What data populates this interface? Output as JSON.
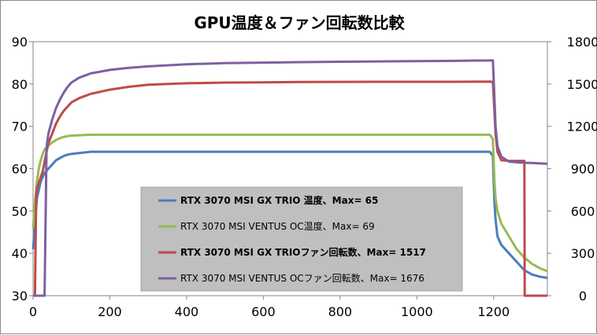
{
  "chart_data": {
    "type": "line",
    "title": "GPU温度＆ファン回転数比較",
    "xlabel": "",
    "ylabel": "",
    "y2label": "",
    "xlim": [
      0,
      1340
    ],
    "ylim": [
      30,
      90
    ],
    "y2lim": [
      0,
      1800
    ],
    "x_ticks": [
      0,
      200,
      400,
      600,
      800,
      1000,
      1200
    ],
    "y_ticks": [
      30,
      40,
      50,
      60,
      70,
      80,
      90
    ],
    "y2_ticks": [
      0,
      300,
      600,
      900,
      1200,
      1500,
      1800
    ],
    "grid": false,
    "legend_position": "center",
    "series": [
      {
        "name": "RTX 3070 MSI GX TRIO 温度、Max= 65",
        "axis": "left",
        "color": "#4a7ebb",
        "bold": true,
        "x": [
          0,
          5,
          10,
          15,
          20,
          25,
          30,
          40,
          50,
          60,
          70,
          80,
          90,
          100,
          120,
          150,
          200,
          300,
          400,
          500,
          600,
          700,
          800,
          900,
          1000,
          1100,
          1190,
          1198,
          1200,
          1202,
          1205,
          1210,
          1220,
          1240,
          1260,
          1280,
          1300,
          1320,
          1340
        ],
        "y": [
          41,
          47,
          53,
          55,
          57,
          58,
          59,
          60,
          61,
          62,
          62.5,
          63,
          63.3,
          63.5,
          63.7,
          64,
          64,
          64,
          64,
          64,
          64,
          64,
          64,
          64,
          64,
          64,
          64,
          63,
          57,
          52,
          48,
          44,
          42,
          40,
          38,
          36,
          35,
          34.5,
          34.2
        ]
      },
      {
        "name": "RTX 3070 MSI VENTUS OC温度、Max= 69",
        "axis": "left",
        "color": "#98b954",
        "bold": false,
        "x": [
          0,
          5,
          10,
          15,
          20,
          25,
          30,
          40,
          50,
          60,
          70,
          80,
          90,
          100,
          120,
          150,
          200,
          300,
          400,
          500,
          600,
          700,
          800,
          900,
          1000,
          1100,
          1190,
          1198,
          1200,
          1202,
          1205,
          1210,
          1220,
          1240,
          1260,
          1280,
          1300,
          1320,
          1340
        ],
        "y": [
          46,
          52,
          57,
          60,
          62,
          63.5,
          64.5,
          65.5,
          66.2,
          66.8,
          67.2,
          67.5,
          67.7,
          67.8,
          67.9,
          68,
          68,
          68,
          68,
          68,
          68,
          68,
          68,
          68,
          68,
          68,
          68,
          67,
          62,
          57,
          53,
          50,
          47,
          44,
          41,
          39,
          37.5,
          36.5,
          35.8
        ]
      },
      {
        "name": "RTX 3070 MSI GX TRIOファン回転数、Max= 1517",
        "axis": "right",
        "color": "#be4b48",
        "bold": true,
        "x": [
          0,
          5,
          8,
          10,
          15,
          20,
          25,
          30,
          35,
          40,
          50,
          60,
          70,
          80,
          90,
          100,
          120,
          150,
          200,
          250,
          300,
          400,
          500,
          600,
          700,
          800,
          900,
          1000,
          1100,
          1190,
          1198,
          1202,
          1205,
          1210,
          1220,
          1240,
          1260,
          1280,
          1281,
          1300,
          1340
        ],
        "y": [
          0,
          0,
          700,
          760,
          800,
          840,
          880,
          950,
          1020,
          1080,
          1150,
          1220,
          1270,
          1310,
          1340,
          1370,
          1400,
          1430,
          1460,
          1480,
          1495,
          1505,
          1510,
          1512,
          1514,
          1515,
          1516,
          1516,
          1516,
          1517,
          1515,
          1300,
          1150,
          1020,
          960,
          955,
          955,
          955,
          0,
          0,
          0
        ]
      },
      {
        "name": "RTX 3070 MSI VENTUS OCファン回転数、Max= 1676",
        "axis": "right",
        "color": "#7d60a0",
        "bold": false,
        "x": [
          0,
          30,
          35,
          40,
          50,
          60,
          70,
          80,
          90,
          100,
          120,
          150,
          200,
          250,
          300,
          400,
          500,
          600,
          700,
          800,
          900,
          1000,
          1100,
          1150,
          1190,
          1198,
          1202,
          1205,
          1210,
          1220,
          1240,
          1260,
          1280,
          1300,
          1340
        ],
        "y": [
          0,
          0,
          1050,
          1150,
          1250,
          1330,
          1390,
          1440,
          1480,
          1510,
          1545,
          1575,
          1600,
          1615,
          1625,
          1640,
          1648,
          1652,
          1655,
          1658,
          1660,
          1662,
          1664,
          1666,
          1667,
          1668,
          1400,
          1200,
          1060,
          985,
          950,
          945,
          942,
          940,
          935
        ]
      }
    ]
  }
}
